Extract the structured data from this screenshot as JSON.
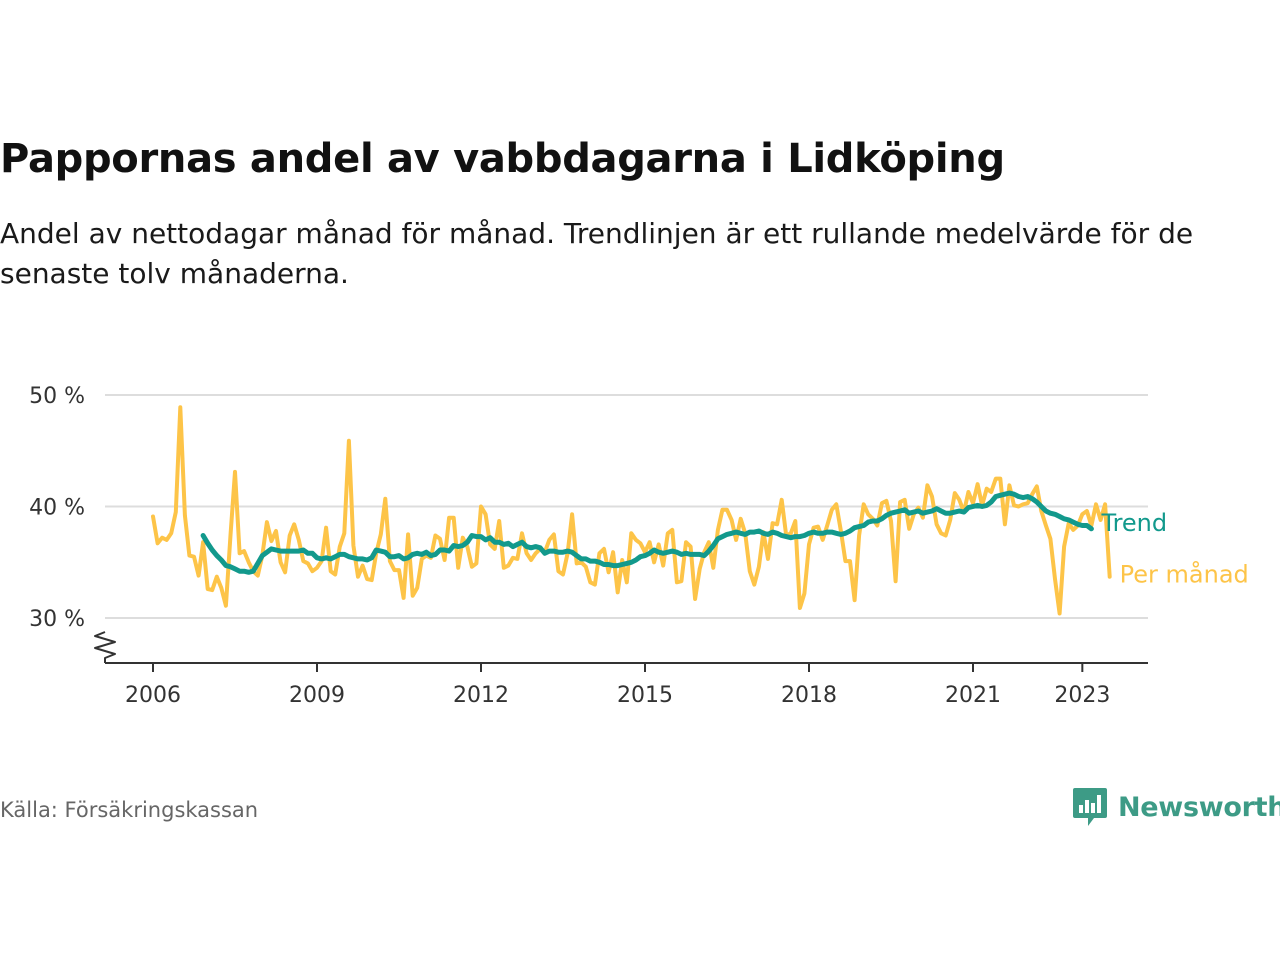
{
  "title": "Pappornas andel av vabbdagarna i Lidköping",
  "subtitle": "Andel av nettodagar månad för månad. Trendlinjen är ett rullande medelvärde för de senaste tolv månaderna.",
  "source": "Källa: Försäkringskassan",
  "logo": {
    "text": "Newsworthy",
    "icon": "newsworthy-chart-bubble-icon"
  },
  "colors": {
    "monthly": "#fdc448",
    "trend": "#12998c",
    "grid": "#dddddd",
    "axis": "#333333"
  },
  "chart_data": {
    "type": "line",
    "title": "Pappornas andel av vabbdagarna i Lidköping",
    "xlabel": "",
    "ylabel": "",
    "ylim": [
      26,
      50
    ],
    "y_ticks": [
      30,
      40,
      50
    ],
    "y_tick_labels": [
      "30 %",
      "40 %",
      "50 %"
    ],
    "y_axis_break": true,
    "x_ticks": [
      2006,
      2009,
      2012,
      2015,
      2018,
      2021,
      2023
    ],
    "x_tick_labels": [
      "2006",
      "2009",
      "2012",
      "2015",
      "2018",
      "2021",
      "2023"
    ],
    "x_start": "2006-01",
    "x_end": "2023-05",
    "grid": "horizontal",
    "legend": "direct labels at line ends (right)",
    "series": [
      {
        "name": "Per månad",
        "start": "2006-01",
        "values": [
          39.1,
          36.7,
          37.2,
          37.0,
          37.6,
          39.5,
          48.9,
          39.2,
          35.6,
          35.5,
          33.8,
          36.8,
          32.6,
          32.5,
          33.7,
          32.7,
          31.1,
          37.3,
          43.1,
          35.8,
          36.0,
          35.0,
          34.2,
          33.8,
          35.6,
          38.6,
          36.9,
          37.8,
          35.0,
          34.1,
          37.4,
          38.4,
          37.0,
          35.1,
          34.9,
          34.2,
          34.5,
          35.1,
          38.1,
          34.2,
          33.9,
          36.4,
          37.6,
          45.9,
          36.5,
          33.7,
          34.7,
          33.5,
          33.4,
          35.8,
          37.5,
          40.7,
          35.1,
          34.3,
          34.3,
          31.8,
          37.5,
          32.0,
          32.7,
          35.3,
          35.6,
          35.4,
          37.4,
          37.1,
          35.2,
          39.0,
          39.0,
          34.5,
          37.2,
          36.4,
          34.6,
          34.9,
          40.0,
          39.3,
          36.6,
          36.2,
          38.7,
          34.5,
          34.7,
          35.4,
          35.3,
          37.6,
          35.8,
          35.2,
          35.8,
          36.2,
          35.9,
          37.0,
          37.5,
          34.2,
          33.9,
          35.8,
          39.3,
          34.9,
          35.0,
          34.6,
          33.2,
          33.0,
          35.8,
          36.2,
          34.1,
          35.9,
          32.3,
          35.2,
          33.2,
          37.6,
          37.0,
          36.7,
          35.9,
          36.8,
          35.0,
          36.6,
          34.7,
          37.6,
          37.9,
          33.2,
          33.3,
          36.8,
          36.4,
          31.7,
          34.4,
          35.9,
          36.8,
          34.5,
          37.9,
          39.7,
          39.7,
          38.8,
          37.0,
          38.9,
          37.6,
          34.2,
          33.0,
          34.6,
          37.7,
          35.3,
          38.5,
          38.4,
          40.6,
          37.4,
          37.6,
          38.7,
          30.9,
          32.2,
          36.6,
          38.1,
          38.2,
          37.0,
          38.3,
          39.7,
          40.2,
          37.8,
          35.1,
          35.1,
          31.6,
          37.4,
          40.2,
          39.3,
          38.9,
          38.3,
          40.3,
          40.5,
          38.7,
          33.3,
          40.4,
          40.6,
          38.0,
          39.3,
          39.9,
          39.0,
          41.9,
          40.9,
          38.4,
          37.6,
          37.4,
          38.8,
          41.2,
          40.6,
          39.5,
          41.3,
          40.3,
          42.0,
          40.1,
          41.6,
          41.3,
          42.5,
          42.5,
          38.4,
          41.9,
          40.1,
          40.0,
          40.2,
          40.3,
          41.1,
          41.8,
          39.6,
          38.3,
          37.1,
          33.5,
          30.4,
          36.4,
          38.5,
          37.9,
          38.3,
          39.3,
          39.6,
          38.3,
          40.2,
          38.8,
          40.2,
          33.7
        ]
      },
      {
        "name": "Trend",
        "start": "2006-12",
        "values": [
          37.4,
          36.7,
          36.1,
          35.6,
          35.2,
          34.7,
          34.6,
          34.4,
          34.2,
          34.2,
          34.1,
          34.2,
          34.9,
          35.6,
          35.9,
          36.2,
          36.1,
          36.0,
          36.0,
          36.0,
          36.0,
          36.0,
          36.1,
          35.8,
          35.8,
          35.4,
          35.3,
          35.4,
          35.3,
          35.5,
          35.7,
          35.7,
          35.5,
          35.4,
          35.3,
          35.3,
          35.2,
          35.4,
          36.1,
          36.0,
          35.9,
          35.5,
          35.5,
          35.6,
          35.3,
          35.4,
          35.7,
          35.8,
          35.7,
          35.9,
          35.6,
          35.7,
          36.1,
          36.1,
          36.0,
          36.5,
          36.4,
          36.5,
          36.8,
          37.4,
          37.3,
          37.3,
          37.0,
          37.2,
          36.8,
          36.8,
          36.6,
          36.7,
          36.4,
          36.6,
          36.8,
          36.4,
          36.3,
          36.4,
          36.3,
          35.8,
          36.0,
          36.0,
          35.9,
          35.9,
          36.0,
          35.9,
          35.6,
          35.3,
          35.3,
          35.1,
          35.1,
          35.0,
          34.8,
          34.8,
          34.7,
          34.7,
          34.8,
          34.9,
          35.0,
          35.2,
          35.5,
          35.6,
          35.8,
          36.1,
          35.9,
          35.8,
          35.9,
          36.0,
          35.9,
          35.7,
          35.8,
          35.7,
          35.7,
          35.7,
          35.6,
          36.0,
          36.5,
          37.1,
          37.3,
          37.5,
          37.6,
          37.7,
          37.6,
          37.5,
          37.7,
          37.7,
          37.8,
          37.6,
          37.5,
          37.7,
          37.6,
          37.4,
          37.3,
          37.2,
          37.3,
          37.3,
          37.4,
          37.6,
          37.7,
          37.6,
          37.6,
          37.7,
          37.7,
          37.6,
          37.5,
          37.6,
          37.8,
          38.1,
          38.2,
          38.3,
          38.6,
          38.7,
          38.7,
          38.9,
          39.2,
          39.4,
          39.5,
          39.6,
          39.7,
          39.4,
          39.5,
          39.6,
          39.4,
          39.5,
          39.6,
          39.8,
          39.6,
          39.4,
          39.4,
          39.5,
          39.6,
          39.5,
          39.9,
          40.0,
          40.1,
          40.0,
          40.1,
          40.4,
          40.9,
          41.0,
          41.1,
          41.2,
          41.1,
          40.9,
          40.8,
          40.9,
          40.7,
          40.4,
          40.0,
          39.6,
          39.4,
          39.3,
          39.1,
          38.9,
          38.8,
          38.6,
          38.4,
          38.3,
          38.3,
          38.0
        ]
      }
    ]
  }
}
